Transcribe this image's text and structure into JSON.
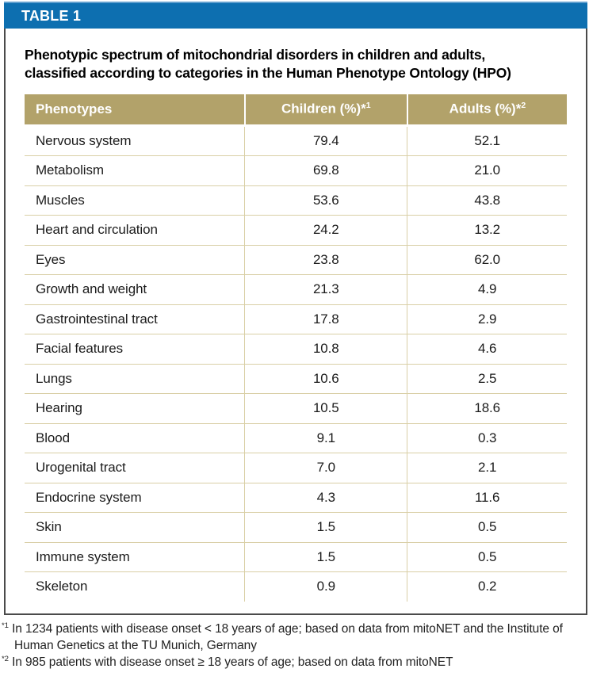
{
  "banner": {
    "label": "TABLE 1"
  },
  "title": {
    "line1": "Phenotypic spectrum of mitochondrial disorders in children and adults,",
    "line2": "classified according to categories in the Human Phenotype Ontology (HPO)"
  },
  "table": {
    "columns": [
      {
        "label": "Phenotypes",
        "sup": ""
      },
      {
        "label": "Children (%)*",
        "sup": "1"
      },
      {
        "label": "Adults (%)*",
        "sup": "2"
      }
    ],
    "rows": [
      {
        "phenotype": "Nervous system",
        "children": "79.4",
        "adults": "52.1"
      },
      {
        "phenotype": "Metabolism",
        "children": "69.8",
        "adults": "21.0"
      },
      {
        "phenotype": "Muscles",
        "children": "53.6",
        "adults": "43.8"
      },
      {
        "phenotype": "Heart and circulation",
        "children": "24.2",
        "adults": "13.2"
      },
      {
        "phenotype": "Eyes",
        "children": "23.8",
        "adults": "62.0"
      },
      {
        "phenotype": "Growth and weight",
        "children": "21.3",
        "adults": "4.9"
      },
      {
        "phenotype": "Gastrointestinal tract",
        "children": "17.8",
        "adults": "2.9"
      },
      {
        "phenotype": "Facial features",
        "children": "10.8",
        "adults": "4.6"
      },
      {
        "phenotype": "Lungs",
        "children": "10.6",
        "adults": "2.5"
      },
      {
        "phenotype": "Hearing",
        "children": "10.5",
        "adults": "18.6"
      },
      {
        "phenotype": "Blood",
        "children": "9.1",
        "adults": "0.3"
      },
      {
        "phenotype": "Urogenital tract",
        "children": "7.0",
        "adults": "2.1"
      },
      {
        "phenotype": "Endocrine system",
        "children": "4.3",
        "adults": "11.6"
      },
      {
        "phenotype": "Skin",
        "children": "1.5",
        "adults": "0.5"
      },
      {
        "phenotype": "Immune system",
        "children": "1.5",
        "adults": "0.5"
      },
      {
        "phenotype": "Skeleton",
        "children": "0.9",
        "adults": "0.2"
      }
    ]
  },
  "footnotes": [
    {
      "marker": "*1",
      "text": "In 1234 patients with disease onset < 18 years of age; based on data from mitoNET and the Institute of Human Genetics at the TU Munich, Germany"
    },
    {
      "marker": "*2",
      "text": "In 985 patients with disease onset ≥ 18 years of age; based on data from mitoNET"
    }
  ],
  "colors": {
    "banner_blue": "#0d6fb0",
    "header_tan": "#b2a26a",
    "row_divider_tan": "#d9cfa6",
    "box_border_gray": "#4a4a4a"
  }
}
